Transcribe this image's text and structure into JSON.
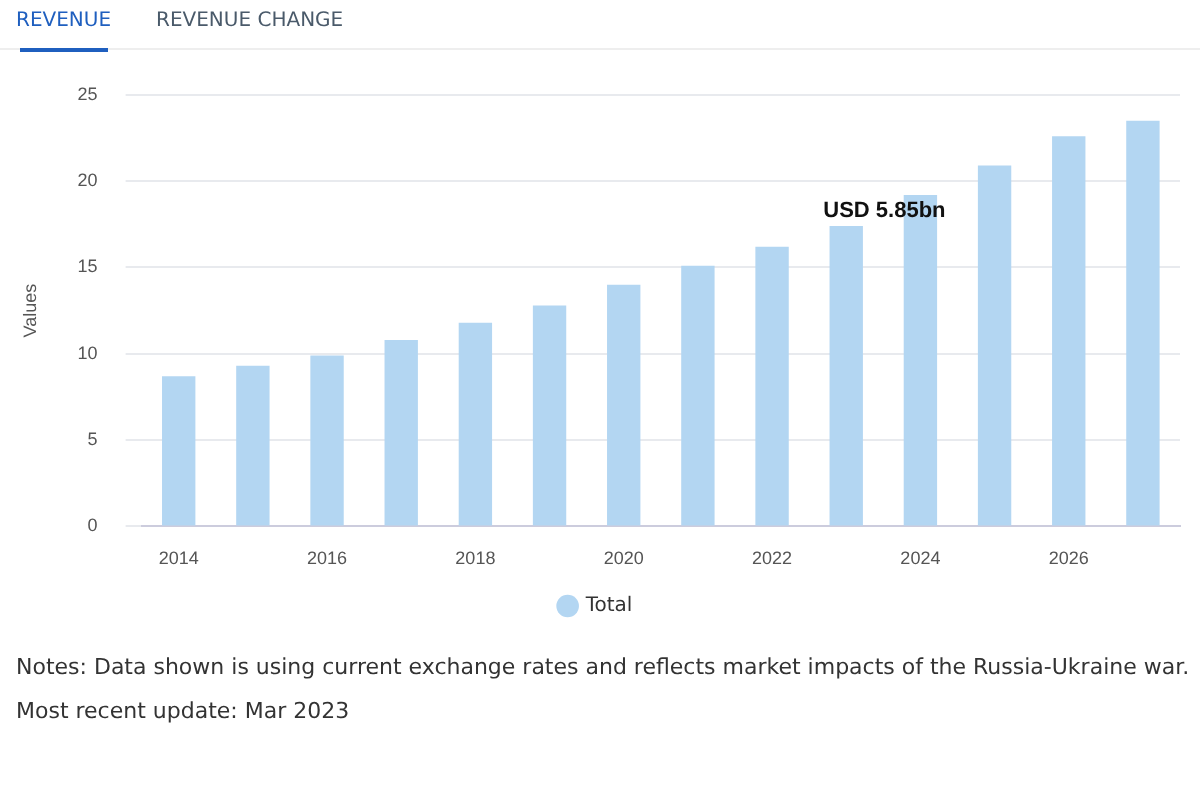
{
  "chart_data": {
    "type": "bar",
    "ylabel": "Values",
    "categories": [
      "2014",
      null,
      "2016",
      null,
      "2018",
      null,
      "2020",
      null,
      "2022",
      null,
      "2024",
      null,
      "2026",
      null
    ],
    "series": [
      {
        "name": "Total",
        "color": "#b3d6f2",
        "values": [
          8.7,
          9.3,
          9.9,
          10.8,
          11.8,
          12.8,
          14.0,
          15.1,
          16.2,
          17.4,
          19.2,
          20.9,
          22.6,
          23.5
        ]
      }
    ],
    "ylim": [
      0,
      25
    ],
    "yticks": [
      0,
      5,
      10,
      15,
      20,
      25
    ],
    "grid": "y",
    "legend": "bottom",
    "annotations": [
      "REVENUE",
      "REVENUE CHANGE",
      "USD 5.85bn",
      "Notes: Data shown is using current exchange rates and reflects market impacts of the Russia-Ukraine war.",
      "Most recent update: Mar 2023"
    ]
  }
}
